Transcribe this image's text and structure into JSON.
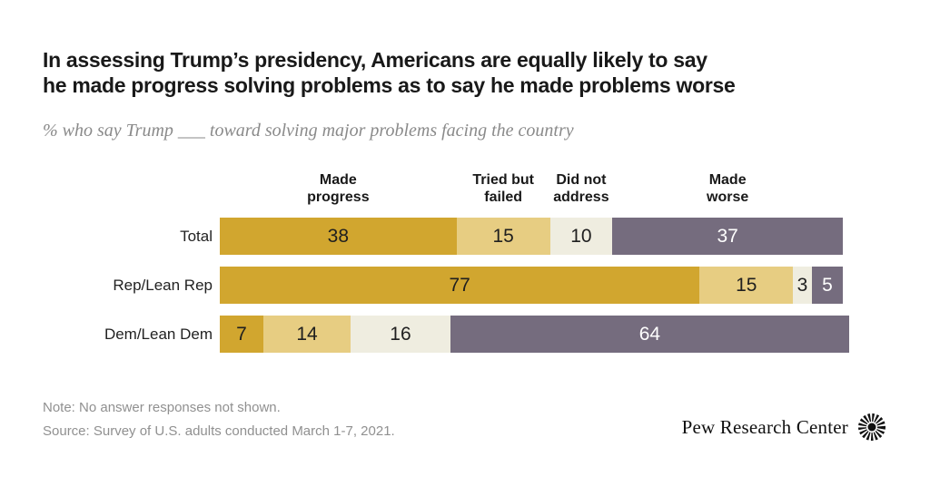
{
  "page": {
    "title_lines": [
      "In assessing Trump’s presidency, Americans are equally likely to say",
      "he made progress solving problems as to say he made problems worse"
    ],
    "subtitle": "% who say Trump ___ toward solving major problems facing the country",
    "note": "Note: No answer responses not shown.",
    "source": "Source: Survey of U.S. adults conducted March 1-7, 2021.",
    "brand": "Pew Research Center"
  },
  "chart_data": {
    "type": "bar",
    "orientation": "horizontal",
    "stacked": true,
    "title": "In assessing Trump’s presidency, Americans are equally likely to say he made progress solving problems as to say he made problems worse",
    "subtitle": "% who say Trump ___ toward solving major problems facing the country",
    "categories": [
      "Total",
      "Rep/Lean Rep",
      "Dem/Lean Dem"
    ],
    "series": [
      {
        "name": "Made progress",
        "header_lines": [
          "Made",
          "progress"
        ],
        "color": "#D1A62F",
        "label_color": "#1f1f1f",
        "values": [
          38,
          77,
          7
        ]
      },
      {
        "name": "Tried but failed",
        "header_lines": [
          "Tried but",
          "failed"
        ],
        "color": "#E7CD82",
        "label_color": "#1f1f1f",
        "values": [
          15,
          15,
          14
        ]
      },
      {
        "name": "Did not address",
        "header_lines": [
          "Did not",
          "address"
        ],
        "color": "#EFEDE0",
        "label_color": "#1f1f1f",
        "values": [
          10,
          3,
          16
        ]
      },
      {
        "name": "Made worse",
        "header_lines": [
          "Made",
          "worse"
        ],
        "color": "#756C7E",
        "label_color": "#ffffff",
        "values": [
          37,
          5,
          64
        ]
      }
    ],
    "axis_units_max": 101,
    "legend_position": "column-headers-above-first-bar",
    "grid": false,
    "colors": {
      "gold": "#D1A62F",
      "tan": "#E7CD82",
      "cream": "#EFEDE0",
      "purple": "#756C7E",
      "title_text": "#191919",
      "muted_text": "#909090",
      "subtitle_text": "#8a8a8a"
    }
  }
}
